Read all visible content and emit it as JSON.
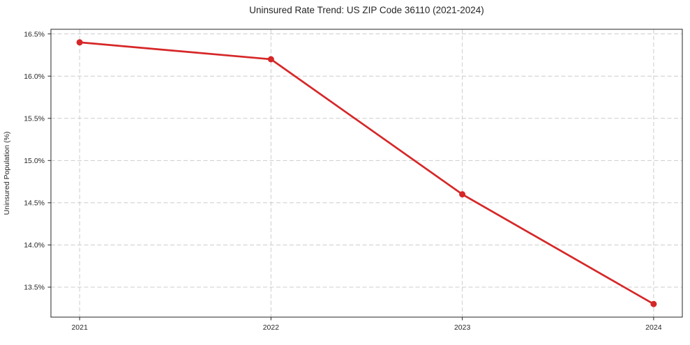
{
  "chart_data": {
    "type": "line",
    "title": "Uninsured Rate Trend: US ZIP Code 36110 (2021-2024)",
    "xlabel": "",
    "ylabel": "Uninsured Population (%)",
    "x": [
      2021,
      2022,
      2023,
      2024
    ],
    "values": [
      16.4,
      16.2,
      14.6,
      13.3
    ],
    "x_tick_labels": [
      "2021",
      "2022",
      "2023",
      "2024"
    ],
    "y_ticks": [
      13.5,
      14.0,
      14.5,
      15.0,
      15.5,
      16.0,
      16.5
    ],
    "y_tick_labels": [
      "13.5%",
      "14.0%",
      "14.5%",
      "15.0%",
      "15.5%",
      "16.0%",
      "16.5%"
    ],
    "xlim": [
      2020.85,
      2024.15
    ],
    "ylim": [
      13.145,
      16.555
    ],
    "grid": true,
    "grid_color": "#cccccc",
    "grid_style": "dashed",
    "line_color": "#d62728",
    "marker_color": "#d62728",
    "marker": "circle",
    "axis_color": "#262626",
    "text_color": "#262626",
    "background_color": "#ffffff",
    "legend_position": "none"
  }
}
